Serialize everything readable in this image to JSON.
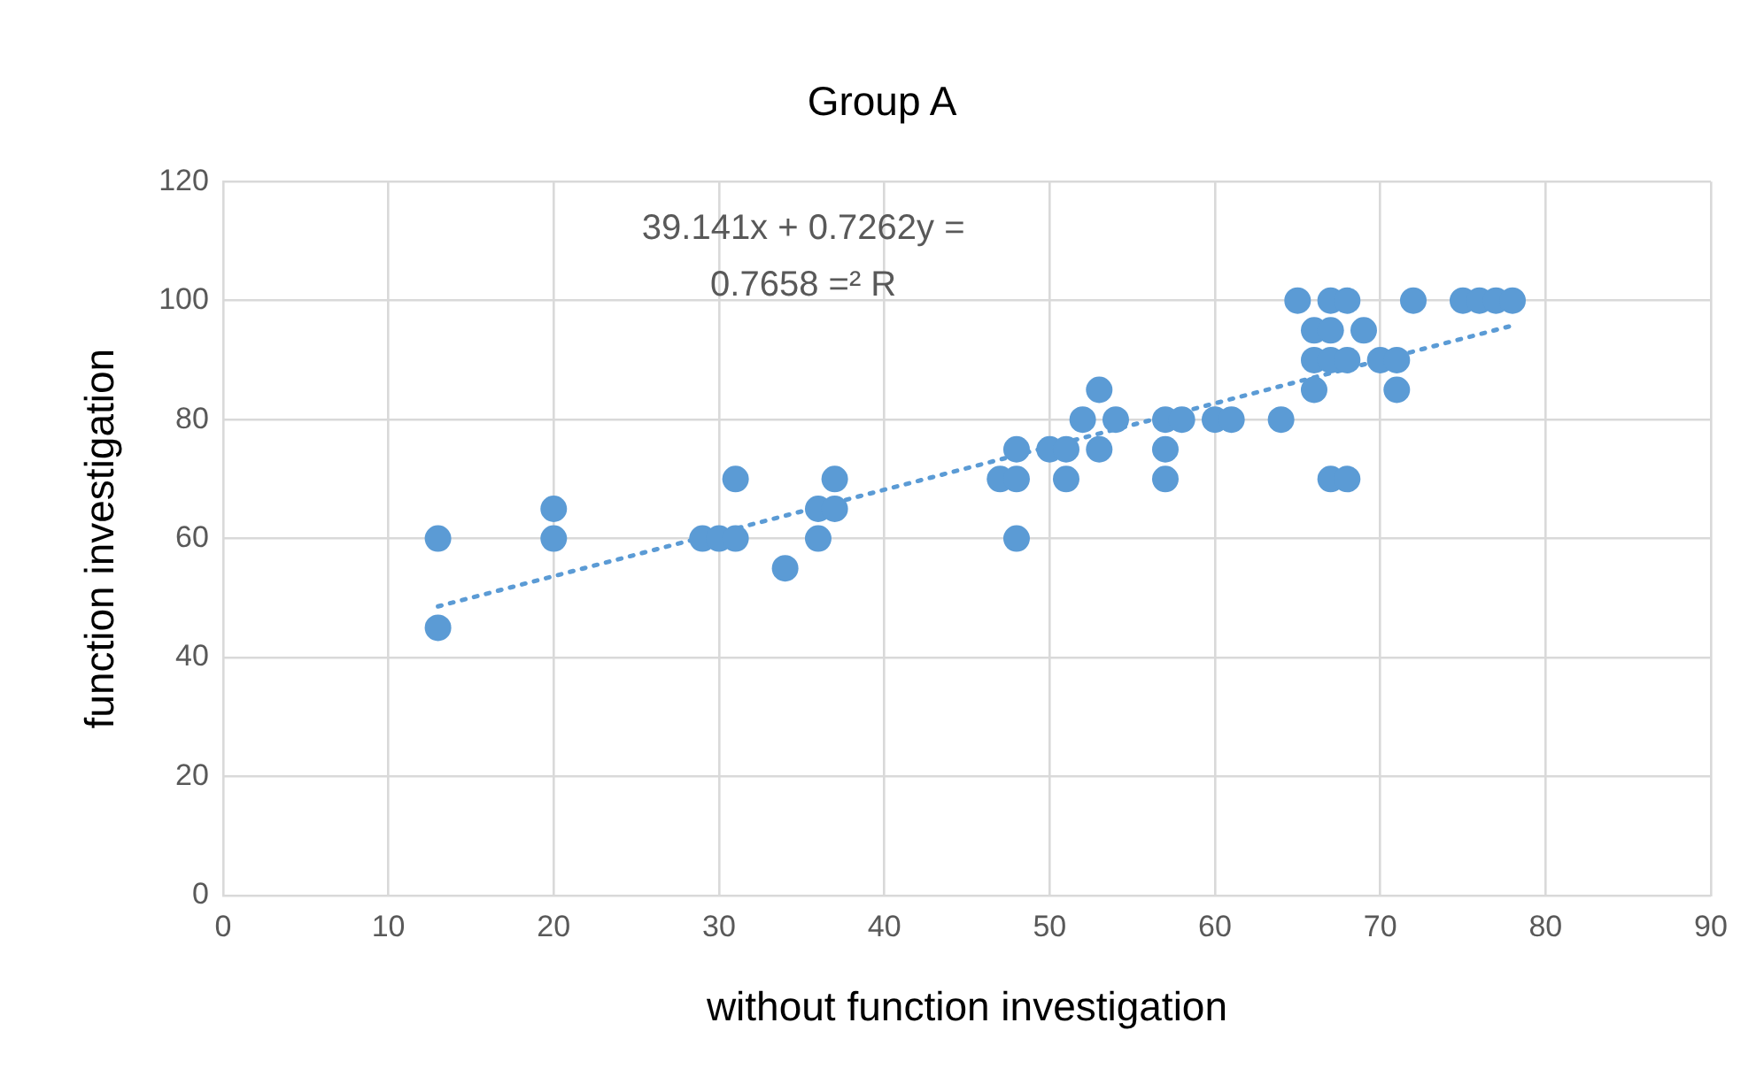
{
  "chart_data": {
    "type": "scatter",
    "title": "Group A",
    "xlabel": "without function investigation",
    "ylabel": "function investigation",
    "annotations": [
      "39.141x + 0.7262y =",
      "0.7658 =² R"
    ],
    "xlim": [
      0,
      90
    ],
    "xticks": [
      0,
      10,
      20,
      30,
      40,
      50,
      60,
      70,
      80,
      90
    ],
    "ylim": [
      0,
      120
    ],
    "yticks": [
      0,
      20,
      40,
      60,
      80,
      100,
      120
    ],
    "grid": true,
    "legend": false,
    "series": [
      {
        "type": "scatter",
        "color": "#5b9bd5",
        "marker": "circle",
        "x": [
          13,
          13,
          20,
          20,
          29,
          30,
          31,
          31,
          34,
          36,
          36,
          37,
          37,
          47,
          48,
          48,
          48,
          50,
          51,
          51,
          52,
          53,
          53,
          54,
          57,
          57,
          57,
          58,
          60,
          61,
          64,
          65,
          66,
          66,
          66,
          67,
          67,
          67,
          67,
          68,
          68,
          68,
          69,
          70,
          71,
          71,
          72,
          75,
          76,
          77,
          78
        ],
        "values": [
          60,
          45,
          65,
          60,
          60,
          60,
          60,
          70,
          55,
          65,
          60,
          65,
          70,
          70,
          70,
          75,
          60,
          75,
          75,
          70,
          80,
          85,
          75,
          80,
          80,
          75,
          70,
          80,
          80,
          80,
          80,
          100,
          95,
          90,
          85,
          100,
          95,
          90,
          70,
          100,
          90,
          70,
          95,
          90,
          90,
          85,
          100,
          100,
          100,
          100,
          100
        ]
      },
      {
        "type": "line",
        "color": "#5b9bd5",
        "marker": "none",
        "line_style": "dotted",
        "x": [
          13,
          78
        ],
        "values": [
          48.6,
          95.8
        ]
      }
    ]
  }
}
